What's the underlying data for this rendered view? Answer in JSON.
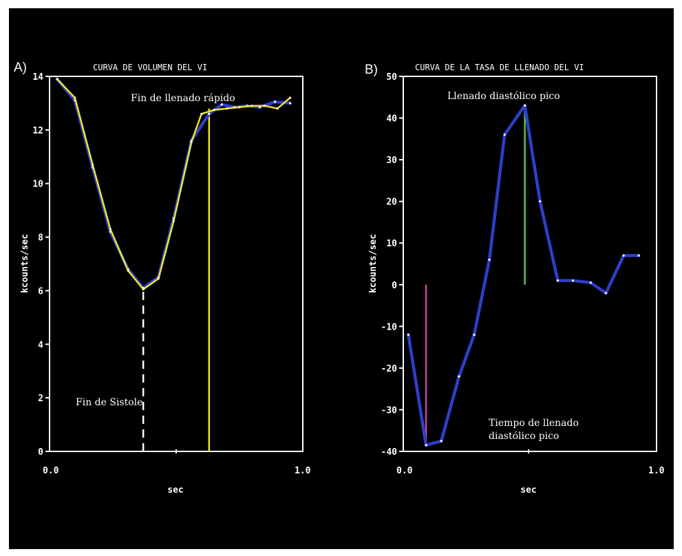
{
  "chart_data": [
    {
      "type": "line",
      "panel_label": "A)",
      "title": "CURVA DE VOLUMEN DEL VI",
      "xlabel": "sec",
      "ylabel": "kcounts/sec",
      "xlim": [
        0,
        1.0
      ],
      "ylim": [
        0,
        14
      ],
      "x_tick_labels": [
        "0.0",
        "1.0"
      ],
      "y_ticks": [
        0,
        2,
        4,
        6,
        8,
        10,
        12,
        14
      ],
      "series": [
        {
          "color": "#2e3fc8",
          "x": [
            0.03,
            0.1,
            0.17,
            0.24,
            0.31,
            0.37,
            0.43,
            0.49,
            0.56,
            0.63,
            0.68,
            0.73,
            0.78,
            0.83,
            0.89,
            0.95
          ],
          "y": [
            13.9,
            13.1,
            10.6,
            8.2,
            6.8,
            6.1,
            6.5,
            8.7,
            11.6,
            12.6,
            12.95,
            12.85,
            12.9,
            12.85,
            13.05,
            13.0
          ]
        },
        {
          "color": "#f2e32a",
          "x": [
            0.03,
            0.1,
            0.17,
            0.24,
            0.31,
            0.37,
            0.43,
            0.49,
            0.56,
            0.6,
            0.65,
            0.7,
            0.75,
            0.8,
            0.85,
            0.9,
            0.95
          ],
          "y": [
            13.9,
            13.2,
            10.7,
            8.3,
            6.75,
            6.05,
            6.45,
            8.6,
            11.55,
            12.6,
            12.75,
            12.8,
            12.85,
            12.9,
            12.9,
            12.8,
            13.2
          ]
        }
      ],
      "markers": [
        {
          "type": "dashed-vline",
          "x": 0.37,
          "y_top": 6.05,
          "color": "#ffffff"
        },
        {
          "type": "vline",
          "x": 0.63,
          "y_top": 12.8,
          "color": "#f2e32a"
        }
      ],
      "annotations": [
        {
          "text": "Fin de llenado rápido"
        },
        {
          "text": "Fin de Sistole"
        }
      ]
    },
    {
      "type": "line",
      "panel_label": "B)",
      "title": "CURVA DE LA TASA DE LLENADO DEL VI",
      "xlabel": "sec",
      "ylabel": "kcounts/sec",
      "xlim": [
        0,
        1.0
      ],
      "ylim": [
        -40,
        50
      ],
      "x_tick_labels": [
        "0.0",
        "1.0"
      ],
      "y_ticks": [
        -40,
        -30,
        -20,
        -10,
        0,
        10,
        20,
        30,
        40,
        50
      ],
      "series": [
        {
          "color": "#2e3fc8",
          "x": [
            0.02,
            0.09,
            0.15,
            0.22,
            0.28,
            0.34,
            0.4,
            0.48,
            0.54,
            0.61,
            0.67,
            0.74,
            0.8,
            0.87,
            0.93
          ],
          "y": [
            -12,
            -38.5,
            -37.5,
            -22,
            -12,
            6,
            36,
            43,
            20,
            1,
            1,
            0.5,
            -2,
            7,
            7
          ]
        }
      ],
      "markers": [
        {
          "type": "vline",
          "x": 0.09,
          "y_bottom": -38.5,
          "y_top": 0,
          "color": "#c846a8"
        },
        {
          "type": "vline",
          "x": 0.48,
          "y_bottom": 0,
          "y_top": 43,
          "color": "#4cc850"
        }
      ],
      "annotations": [
        {
          "text": "Llenado diastólico pico"
        },
        {
          "text": "Tiempo de llenado"
        },
        {
          "text": "diastólico pico"
        }
      ]
    }
  ]
}
